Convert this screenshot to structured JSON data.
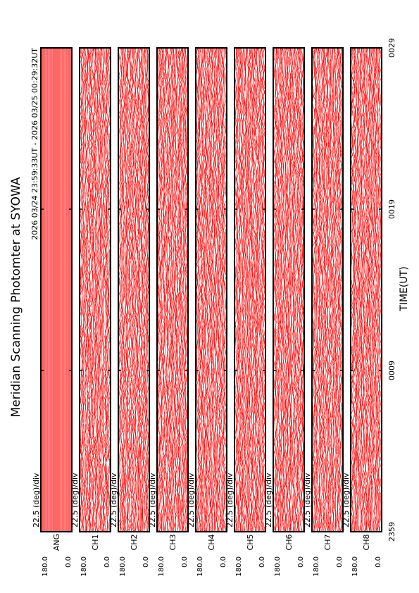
{
  "chart_data": {
    "type": "stacked-traces",
    "title": "Meridian Scanning Photomter at SYOWA",
    "subtitle": "2026 03/24 23:59:33UT - 2026 03/25 00:29:32UT",
    "xlabel": "TIME(UT)",
    "xticks": [
      "2359",
      "0009",
      "0019",
      "0029"
    ],
    "yticks": [
      {
        "value": 180,
        "label": "180.0"
      },
      {
        "value": 0,
        "label": "0.0"
      }
    ],
    "ylim": [
      0,
      180
    ],
    "color": "#ff0000",
    "panels": [
      {
        "name": "ANG",
        "scale": "22.5 (deg)/div"
      },
      {
        "name": "CH1",
        "scale": "22.5 (deg)/div"
      },
      {
        "name": "CH2",
        "scale": "22.5 (deg)/div"
      },
      {
        "name": "CH3",
        "scale": "22.5 (deg)/div"
      },
      {
        "name": "CH4",
        "scale": "22.5 (deg)/div"
      },
      {
        "name": "CH5",
        "scale": "22.5 (deg)/div"
      },
      {
        "name": "CH6",
        "scale": "22.5 (deg)/div"
      },
      {
        "name": "CH7",
        "scale": "22.5 (deg)/div"
      },
      {
        "name": "CH8",
        "scale": "22.5 (deg)/div"
      }
    ]
  }
}
